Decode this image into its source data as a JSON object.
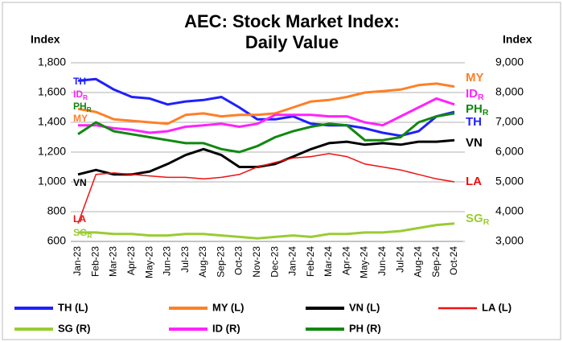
{
  "chart_data": {
    "type": "line",
    "title": [
      "AEC: Stock Market Index:",
      "Daily Value"
    ],
    "ylabel": "Index",
    "y2label": "Index",
    "categories": [
      "Jan-23",
      "Feb-23",
      "Mar-23",
      "Apr-23",
      "May-23",
      "Jun-23",
      "Jul-23",
      "Aug-23",
      "Sep-23",
      "Oct-23",
      "Nov-23",
      "Dec-23",
      "Jan-24",
      "Feb-24",
      "Mar-24",
      "Apr-24",
      "May-24",
      "Jun-24",
      "Jul-24",
      "Aug-24",
      "Sep-24",
      "Oct-24"
    ],
    "ylim": [
      600,
      1800
    ],
    "yticks": [
      600,
      800,
      {
        "value": 1000,
        "label": "1,000"
      },
      {
        "value": 1200,
        "label": "1,200"
      },
      {
        "value": 1400,
        "label": "1,400"
      },
      {
        "value": 1600,
        "label": "1,600"
      },
      {
        "value": 1800,
        "label": "1,800"
      }
    ],
    "y2lim": [
      3000,
      9000
    ],
    "y2ticks": [
      {
        "value": 3000,
        "label": "3,000"
      },
      {
        "value": 4000,
        "label": "4,000"
      },
      {
        "value": 5000,
        "label": "5,000"
      },
      {
        "value": 6000,
        "label": "6,000"
      },
      {
        "value": 7000,
        "label": "7,000"
      },
      {
        "value": 8000,
        "label": "8,000"
      },
      {
        "value": 9000,
        "label": "9,000"
      }
    ],
    "grid": true,
    "series": [
      {
        "name": "TH (L)",
        "color": "#1f1fff",
        "width": 3,
        "values": [
          1680,
          1690,
          1620,
          1570,
          1560,
          1520,
          1540,
          1550,
          1570,
          1500,
          1420,
          1420,
          1440,
          1390,
          1380,
          1380,
          1360,
          1330,
          1310,
          1340,
          1440,
          1470
        ]
      },
      {
        "name": "MY (L)",
        "color": "#ff7f27",
        "width": 3,
        "values": [
          1490,
          1470,
          1420,
          1410,
          1400,
          1390,
          1450,
          1460,
          1440,
          1450,
          1450,
          1460,
          1500,
          1540,
          1550,
          1570,
          1600,
          1610,
          1620,
          1650,
          1660,
          1640
        ]
      },
      {
        "name": "VN (L)",
        "color": "#000000",
        "width": 3,
        "values": [
          1050,
          1080,
          1050,
          1050,
          1070,
          1120,
          1180,
          1220,
          1180,
          1100,
          1100,
          1120,
          1170,
          1220,
          1260,
          1270,
          1250,
          1260,
          1250,
          1270,
          1270,
          1280
        ]
      },
      {
        "name": "LA (L)",
        "color": "#ee1111",
        "width": 1.5,
        "values": [
          720,
          1050,
          1060,
          1050,
          1040,
          1030,
          1030,
          1020,
          1030,
          1050,
          1100,
          1130,
          1160,
          1170,
          1190,
          1170,
          1120,
          1100,
          1080,
          1050,
          1020,
          1000
        ]
      },
      {
        "name": "SG (R)",
        "color": "#99cc33",
        "width": 3,
        "axis": "y2",
        "values": [
          3300,
          3300,
          3250,
          3250,
          3200,
          3200,
          3250,
          3250,
          3200,
          3150,
          3100,
          3150,
          3200,
          3150,
          3250,
          3250,
          3300,
          3300,
          3350,
          3450,
          3550,
          3600
        ]
      },
      {
        "name": "ID (R)",
        "color": "#ff22ff",
        "width": 3,
        "axis": "y2",
        "values": [
          6900,
          6900,
          6800,
          6750,
          6650,
          6700,
          6850,
          6900,
          6950,
          6850,
          6950,
          7250,
          7250,
          7250,
          7200,
          7200,
          7000,
          6900,
          7200,
          7500,
          7800,
          7600
        ]
      },
      {
        "name": "PH (R)",
        "color": "#118811",
        "width": 3,
        "axis": "y2",
        "values": [
          6600,
          7000,
          6700,
          6600,
          6500,
          6400,
          6300,
          6300,
          6100,
          6000,
          6200,
          6500,
          6700,
          6850,
          6950,
          6900,
          6400,
          6400,
          6500,
          7000,
          7200,
          7300
        ]
      }
    ],
    "left_annotations": [
      {
        "text": "TH"
      },
      {
        "text": "ID",
        "sub": "R"
      },
      {
        "text": "PH",
        "sub": "R"
      },
      {
        "text": "MY"
      },
      {
        "text": "VN"
      },
      {
        "text": "LA"
      },
      {
        "text": "SG",
        "sub": "R"
      }
    ],
    "right_annotations": [
      {
        "text": "MY"
      },
      {
        "text": "ID",
        "sub": "R"
      },
      {
        "text": "PH",
        "sub": "R"
      },
      {
        "text": "TH"
      },
      {
        "text": "VN"
      },
      {
        "text": "LA"
      },
      {
        "text": "SG",
        "sub": "R"
      }
    ]
  }
}
